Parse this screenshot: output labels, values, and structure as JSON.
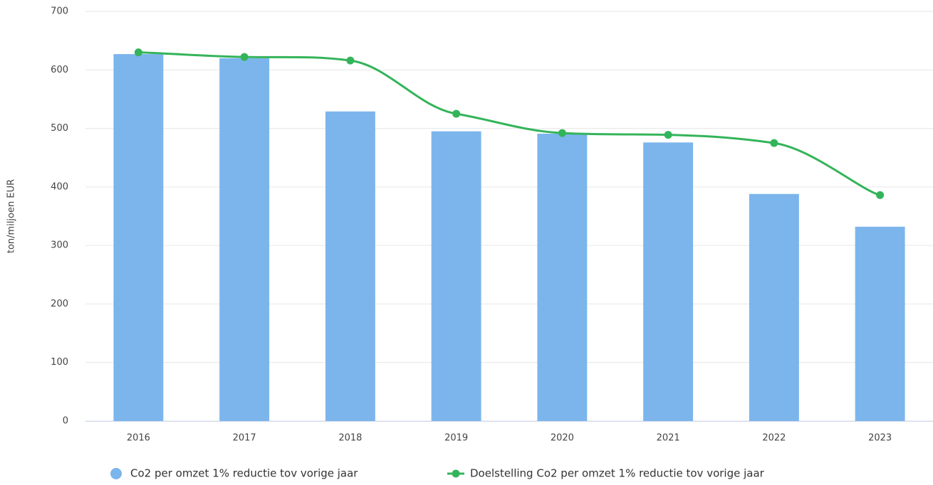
{
  "chart_data": {
    "type": "bar",
    "y_axis_label": "ton/miljoen EUR",
    "categories": [
      "2016",
      "2017",
      "2018",
      "2019",
      "2020",
      "2021",
      "2022",
      "2023"
    ],
    "series": [
      {
        "name": "Co2 per omzet 1% reductie tov vorige jaar",
        "type": "bar",
        "color": "#7cb5ec",
        "values": [
          627,
          620,
          529,
          495,
          491,
          476,
          388,
          332
        ]
      },
      {
        "name": "Doelstelling Co2 per omzet 1% reductie tov vorige jaar",
        "type": "line",
        "color": "#34b45a",
        "values": [
          630,
          622,
          616,
          525,
          492,
          489,
          475,
          386
        ]
      }
    ],
    "ylim": [
      0,
      700
    ],
    "yticks": [
      0,
      100,
      200,
      300,
      400,
      500,
      600,
      700
    ],
    "grid": true,
    "legend": "bottom"
  }
}
